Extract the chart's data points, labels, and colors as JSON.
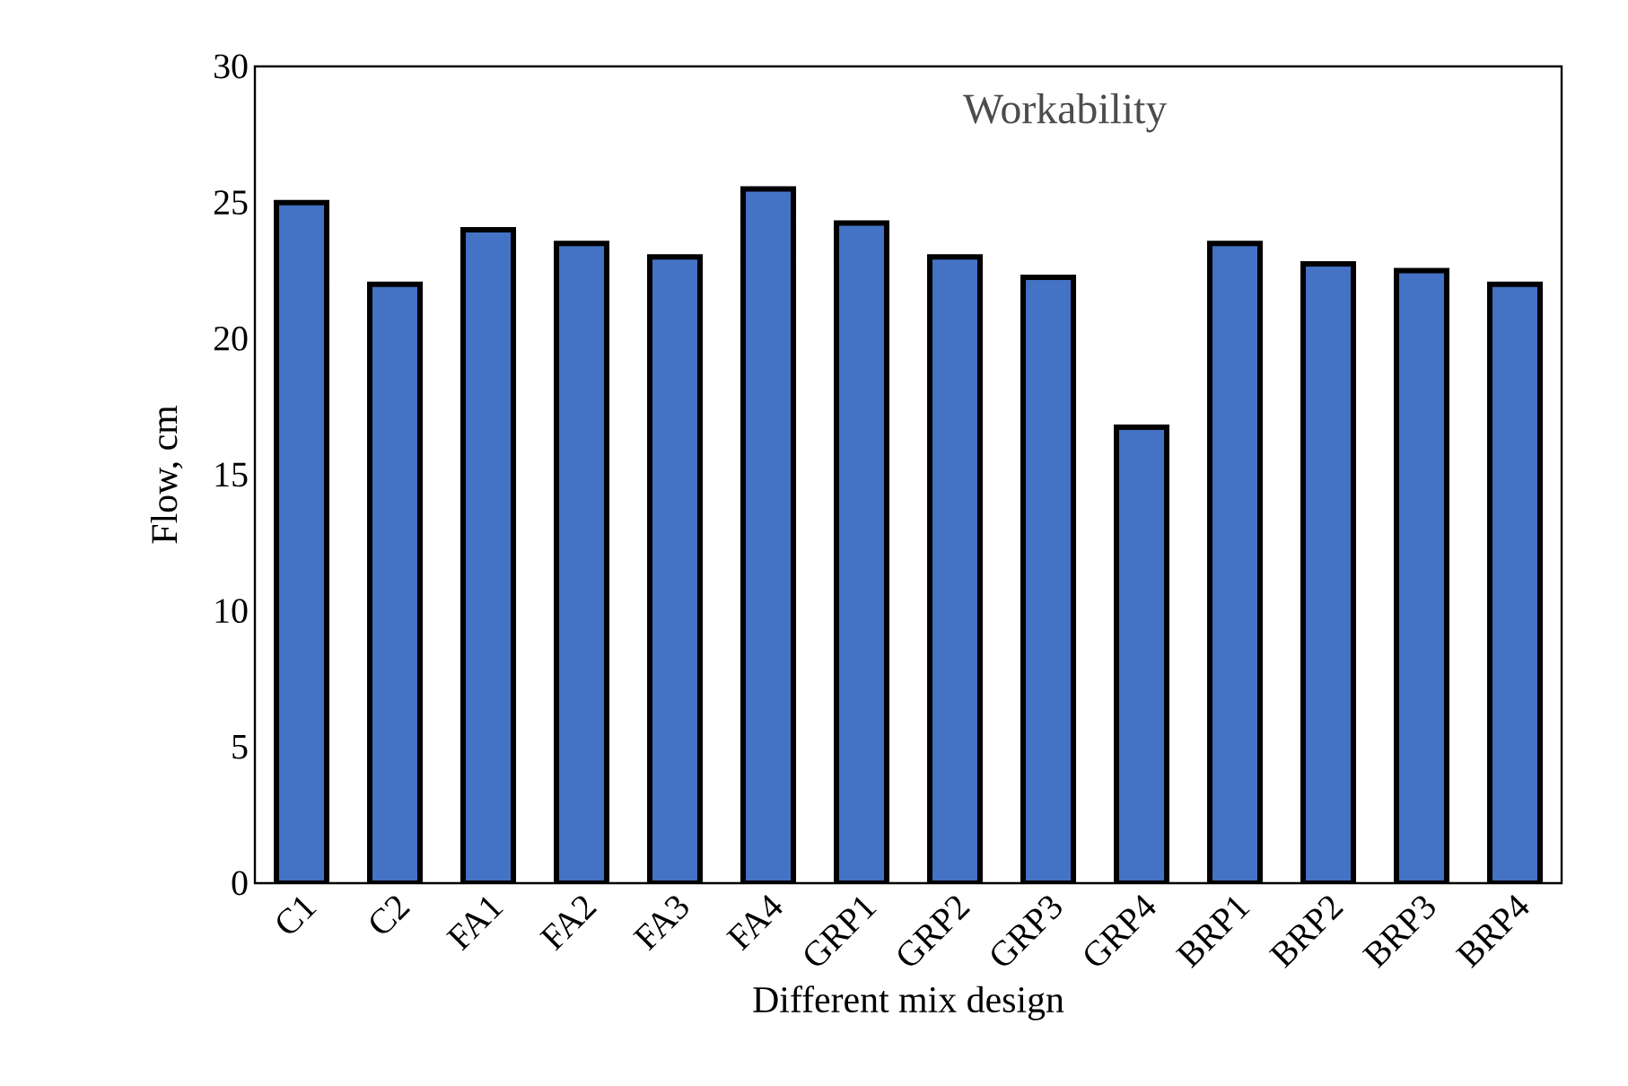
{
  "chart_data": {
    "type": "bar",
    "title": "Workability",
    "xlabel": "Different mix design",
    "ylabel": "Flow, cm",
    "categories": [
      "C1",
      "C2",
      "FA1",
      "FA2",
      "FA3",
      "FA4",
      "GRP1",
      "GRP2",
      "GRP3",
      "GRP4",
      "BRP1",
      "BRP2",
      "BRP3",
      "BRP4"
    ],
    "values": [
      25,
      22,
      24,
      23.5,
      23,
      25.5,
      24.25,
      23,
      22.25,
      16.75,
      23.5,
      22.75,
      22.5,
      22
    ],
    "color": "#4472c4",
    "ylim": [
      0,
      30
    ],
    "yticks": [
      0,
      5,
      10,
      15,
      20,
      25,
      30
    ],
    "grid": false
  }
}
